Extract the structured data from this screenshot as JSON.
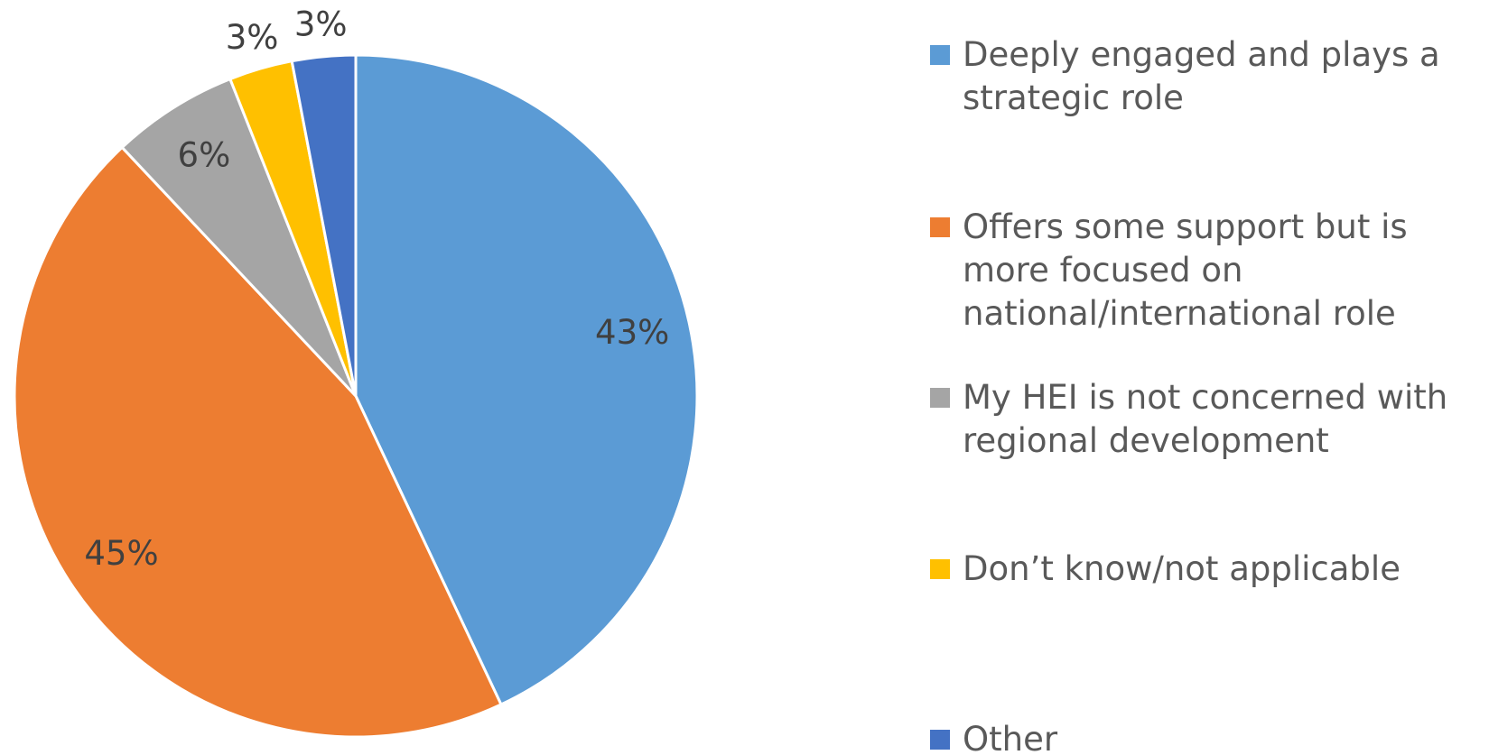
{
  "chart_data": {
    "type": "pie",
    "categories": [
      "Deeply engaged and plays a strategic role",
      "Offers some support but is more focused on national/international role",
      "My HEI is not concerned with regional development",
      "Don’t know/not applicable",
      "Other"
    ],
    "values": [
      43,
      45,
      6,
      3,
      3
    ],
    "value_labels": [
      "43%",
      "45%",
      "6%",
      "3%",
      "3%"
    ],
    "colors": [
      "#5b9bd5",
      "#ed7d31",
      "#a5a5a5",
      "#ffc000",
      "#4472c4"
    ],
    "legend": "right"
  }
}
